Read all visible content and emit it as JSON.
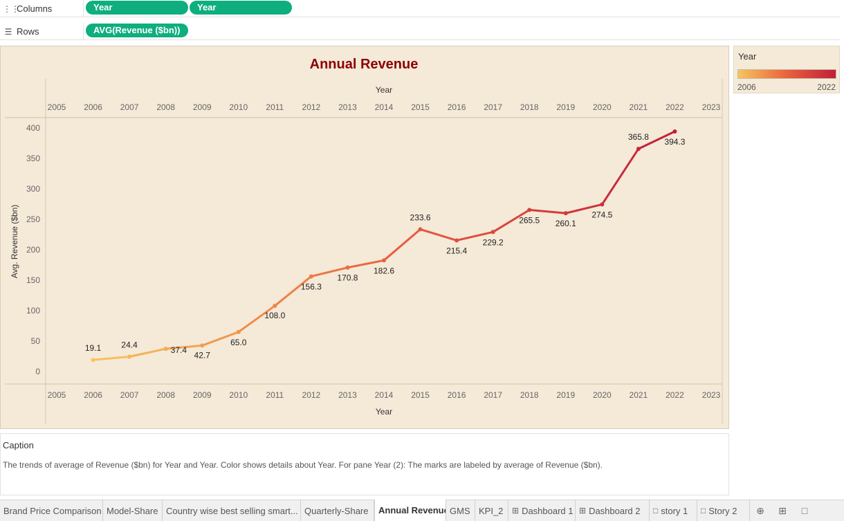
{
  "shelves": {
    "columns": {
      "label": "Columns",
      "icon": "columns-icon",
      "pills": [
        "Year",
        "Year"
      ]
    },
    "rows": {
      "label": "Rows",
      "icon": "rows-icon",
      "pills": [
        "AVG(Revenue ($bn))"
      ]
    }
  },
  "chart_data": {
    "type": "line",
    "title": "Annual Revenue",
    "xlabel": "Year",
    "ylabel": "Avg. Revenue ($bn)",
    "x_top_label": "Year",
    "x_ticks": [
      "2005",
      "2006",
      "2007",
      "2008",
      "2009",
      "2010",
      "2011",
      "2012",
      "2013",
      "2014",
      "2015",
      "2016",
      "2017",
      "2018",
      "2019",
      "2020",
      "2021",
      "2022",
      "2023"
    ],
    "y_ticks": [
      "0",
      "50",
      "100",
      "150",
      "200",
      "250",
      "300",
      "350",
      "400"
    ],
    "xlim": [
      2005,
      2023
    ],
    "ylim": [
      0,
      400
    ],
    "x": [
      2006,
      2007,
      2008,
      2009,
      2010,
      2011,
      2012,
      2013,
      2014,
      2015,
      2016,
      2017,
      2018,
      2019,
      2020,
      2021,
      2022
    ],
    "values": [
      19.1,
      24.4,
      37.4,
      42.7,
      65.0,
      108.0,
      156.3,
      170.8,
      182.6,
      233.6,
      215.4,
      229.2,
      265.5,
      260.1,
      274.5,
      365.8,
      394.3
    ],
    "labels": [
      "19.1",
      "24.4",
      "37.4",
      "42.7",
      "65.0",
      "108.0",
      "156.3",
      "170.8",
      "182.6",
      "233.6",
      "215.4",
      "229.2",
      "265.5",
      "260.1",
      "274.5",
      "365.8",
      "394.3"
    ],
    "color_scale": {
      "start": "#f7c55c",
      "mid": "#e8623e",
      "end": "#c11f3a"
    },
    "title_color": "#8b0000",
    "grid": false
  },
  "legend": {
    "title": "Year",
    "min": "2006",
    "max": "2022"
  },
  "caption": {
    "title": "Caption",
    "text": "The trends of average of Revenue ($bn) for Year and Year.  Color shows details about Year.  For pane Year (2):  The marks are labeled by average of Revenue ($bn)."
  },
  "tabs": [
    {
      "label": "Brand Price Comparison",
      "icon": ""
    },
    {
      "label": "Model-Share",
      "icon": ""
    },
    {
      "label": "Country wise best selling smart...",
      "icon": ""
    },
    {
      "label": "Quarterly-Share",
      "icon": ""
    },
    {
      "label": "Annual Revenue",
      "icon": "",
      "active": true
    },
    {
      "label": "GMS",
      "icon": ""
    },
    {
      "label": "KPI_2",
      "icon": ""
    },
    {
      "label": "Dashboard 1",
      "icon": "dashboard-icon"
    },
    {
      "label": "Dashboard 2",
      "icon": "dashboard-icon"
    },
    {
      "label": "story 1",
      "icon": "story-icon"
    },
    {
      "label": "Story 2",
      "icon": "story-icon"
    }
  ]
}
